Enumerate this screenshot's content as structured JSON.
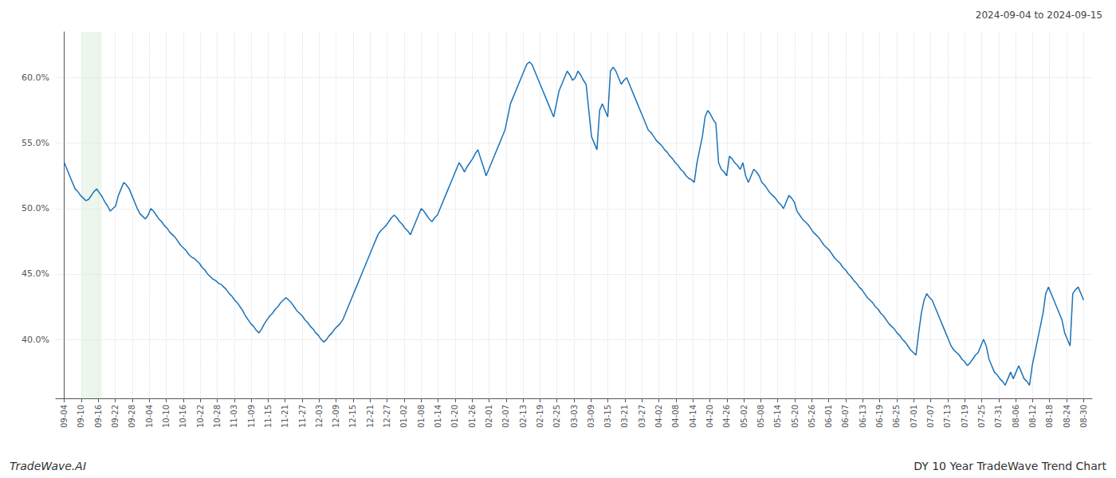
{
  "chart_data": {
    "type": "line",
    "title": "2024-09-04 to 2024-09-15",
    "annotations": [
      "TradeWave.AI",
      "DY 10 Year TradeWave Trend Chart"
    ],
    "color": "#1a72b8",
    "grid": true,
    "highlight": {
      "start": 1.0,
      "end": 2.2,
      "color": "#ddeedd"
    },
    "xlim": [
      -0.5,
      60.5
    ],
    "xticks": [
      {
        "value": 0,
        "label": "09-04"
      },
      {
        "value": 1,
        "label": "09-10"
      },
      {
        "value": 2,
        "label": "09-16"
      },
      {
        "value": 3,
        "label": "09-22"
      },
      {
        "value": 4,
        "label": "09-28"
      },
      {
        "value": 5,
        "label": "10-04"
      },
      {
        "value": 6,
        "label": "10-10"
      },
      {
        "value": 7,
        "label": "10-16"
      },
      {
        "value": 8,
        "label": "10-22"
      },
      {
        "value": 9,
        "label": "10-28"
      },
      {
        "value": 10,
        "label": "11-03"
      },
      {
        "value": 11,
        "label": "11-09"
      },
      {
        "value": 12,
        "label": "11-15"
      },
      {
        "value": 13,
        "label": "11-21"
      },
      {
        "value": 14,
        "label": "11-27"
      },
      {
        "value": 15,
        "label": "12-03"
      },
      {
        "value": 16,
        "label": "12-09"
      },
      {
        "value": 17,
        "label": "12-15"
      },
      {
        "value": 18,
        "label": "12-21"
      },
      {
        "value": 19,
        "label": "12-27"
      },
      {
        "value": 20,
        "label": "01-02"
      },
      {
        "value": 21,
        "label": "01-08"
      },
      {
        "value": 22,
        "label": "01-14"
      },
      {
        "value": 23,
        "label": "01-20"
      },
      {
        "value": 24,
        "label": "01-26"
      },
      {
        "value": 25,
        "label": "02-01"
      },
      {
        "value": 26,
        "label": "02-07"
      },
      {
        "value": 27,
        "label": "02-13"
      },
      {
        "value": 28,
        "label": "02-19"
      },
      {
        "value": 29,
        "label": "02-25"
      },
      {
        "value": 30,
        "label": "03-03"
      },
      {
        "value": 31,
        "label": "03-09"
      },
      {
        "value": 32,
        "label": "03-15"
      },
      {
        "value": 33,
        "label": "03-21"
      },
      {
        "value": 34,
        "label": "03-27"
      },
      {
        "value": 35,
        "label": "04-02"
      },
      {
        "value": 36,
        "label": "04-08"
      },
      {
        "value": 37,
        "label": "04-14"
      },
      {
        "value": 38,
        "label": "04-20"
      },
      {
        "value": 39,
        "label": "04-26"
      },
      {
        "value": 40,
        "label": "05-02"
      },
      {
        "value": 41,
        "label": "05-08"
      },
      {
        "value": 42,
        "label": "05-14"
      },
      {
        "value": 43,
        "label": "05-20"
      },
      {
        "value": 44,
        "label": "05-26"
      },
      {
        "value": 45,
        "label": "06-01"
      },
      {
        "value": 46,
        "label": "06-07"
      },
      {
        "value": 47,
        "label": "06-13"
      },
      {
        "value": 48,
        "label": "06-19"
      },
      {
        "value": 49,
        "label": "06-25"
      },
      {
        "value": 50,
        "label": "07-01"
      },
      {
        "value": 51,
        "label": "07-07"
      },
      {
        "value": 52,
        "label": "07-13"
      },
      {
        "value": 53,
        "label": "07-19"
      },
      {
        "value": 54,
        "label": "07-25"
      },
      {
        "value": 55,
        "label": "07-31"
      },
      {
        "value": 56,
        "label": "08-06"
      },
      {
        "value": 57,
        "label": "08-12"
      },
      {
        "value": 58,
        "label": "08-18"
      },
      {
        "value": 59,
        "label": "08-24"
      },
      {
        "value": 60,
        "label": "08-30"
      }
    ],
    "ylim": [
      35.5,
      63.5
    ],
    "yticks": [
      {
        "value": 40.0,
        "label": "40.0%"
      },
      {
        "value": 45.0,
        "label": "45.0%"
      },
      {
        "value": 50.0,
        "label": "50.0%"
      },
      {
        "value": 55.0,
        "label": "55.0%"
      },
      {
        "value": 60.0,
        "label": "60.0%"
      }
    ],
    "x": [
      0,
      0.1592,
      0.3183,
      0.4775,
      0.6366,
      0.7958,
      0.9549,
      1.1141,
      1.2732,
      1.4324,
      1.5915,
      1.7507,
      1.9098,
      2.069,
      2.2281,
      2.3873,
      2.5464,
      2.7056,
      2.8647,
      3.0239,
      3.183,
      3.3422,
      3.5013,
      3.6605,
      3.8196,
      3.9788,
      4.1379,
      4.2971,
      4.4562,
      4.6154,
      4.7745,
      4.9337,
      5.0928,
      5.252,
      5.4111,
      5.5703,
      5.7294,
      5.8886,
      6.0477,
      6.2069,
      6.366,
      6.5252,
      6.6844,
      6.8435,
      7.0027,
      7.1618,
      7.321,
      7.4801,
      7.6393,
      7.7984,
      7.9576,
      8.1167,
      8.2759,
      8.435,
      8.5942,
      8.7533,
      8.9125,
      9.0716,
      9.2308,
      9.3899,
      9.5491,
      9.7082,
      9.8674,
      10.0265,
      10.1857,
      10.3448,
      10.504,
      10.6631,
      10.8223,
      10.9814,
      11.1406,
      11.2997,
      11.4589,
      11.618,
      11.7772,
      11.9363,
      12.0955,
      12.2546,
      12.4138,
      12.5729,
      12.7321,
      12.8912,
      13.0504,
      13.2095,
      13.3687,
      13.5279,
      13.687,
      13.8462,
      14.0053,
      14.1645,
      14.3236,
      14.4828,
      14.6419,
      14.8011,
      14.9602,
      15.1194,
      15.2785,
      15.4377,
      15.5968,
      15.756,
      15.9151,
      16.0743,
      16.2334,
      16.3926,
      16.5517,
      16.7109,
      16.87,
      17.0292,
      17.1883,
      17.3475,
      17.5066,
      17.6658,
      17.8249,
      17.9841,
      18.1432,
      18.3024,
      18.4615,
      18.6207,
      18.7798,
      18.939,
      19.0981,
      19.2573,
      19.4164,
      19.5756,
      19.7347,
      19.8939,
      20.0531,
      20.2122,
      20.3714,
      20.5305,
      20.6897,
      20.8488,
      21.008,
      21.1671,
      21.3263,
      21.4854,
      21.6446,
      21.8037,
      21.9629,
      22.122,
      22.2812,
      22.4403,
      22.5995,
      22.7586,
      22.9178,
      23.0769,
      23.2361,
      23.3952,
      23.5544,
      23.7135,
      23.8727,
      24.0318,
      24.191,
      24.3501,
      24.5093,
      24.6684,
      24.8276,
      24.9867,
      25.1459,
      25.305,
      25.4642,
      25.6233,
      25.7825,
      25.9416,
      26.1008,
      26.2599,
      26.4191,
      26.5782,
      26.7374,
      26.8966,
      27.0557,
      27.2149,
      27.374,
      27.5332,
      27.6923,
      27.8515,
      28.0106,
      28.1698,
      28.3289,
      28.4881,
      28.6472,
      28.8064,
      28.9655,
      29.1247,
      29.2838,
      29.443,
      29.6021,
      29.7613,
      29.9204,
      30.0796,
      30.2387,
      30.3979,
      30.557,
      30.7162,
      30.8753,
      31.0345,
      31.1936,
      31.3528,
      31.5119,
      31.6711,
      31.8302,
      31.9894,
      32.1485,
      32.3077,
      32.4668,
      32.626,
      32.7851,
      32.9443,
      33.1034,
      33.2626,
      33.4218,
      33.5809,
      33.7401,
      33.8992,
      34.0584,
      34.2175,
      34.3767,
      34.5358,
      34.695,
      34.8541,
      35.0133,
      35.1724,
      35.3316,
      35.4907,
      35.6499,
      35.809,
      35.9682,
      36.1273,
      36.2865,
      36.4456,
      36.6048,
      36.7639,
      36.9231,
      37.0822,
      37.2414,
      37.4005,
      37.5597,
      37.7188,
      37.878,
      38.0371,
      38.1963,
      38.3554,
      38.5146,
      38.6737,
      38.8329,
      38.992,
      39.1512,
      39.3103,
      39.4695,
      39.6286,
      39.7878,
      39.9469,
      40.1061,
      40.2653,
      40.4244,
      40.5836,
      40.7427,
      40.9019,
      41.061,
      41.2202,
      41.3793,
      41.5385,
      41.6976,
      41.8568,
      42.0159,
      42.1751,
      42.3342,
      42.4934,
      42.6525,
      42.8117,
      42.9708,
      43.13,
      43.2891,
      43.4483,
      43.6074,
      43.7666,
      43.9257,
      44.0849,
      44.244,
      44.4032,
      44.5623,
      44.7215,
      44.8806,
      45.0398,
      45.1989,
      45.3581,
      45.5172,
      45.6764,
      45.8355,
      45.9947,
      46.1538,
      46.313,
      46.4721,
      46.6313,
      46.7905,
      46.9496,
      47.1088,
      47.2679,
      47.4271,
      47.5862,
      47.7454,
      47.9045,
      48.0637,
      48.2228,
      48.382,
      48.5411,
      48.7003,
      48.8594,
      49.0186,
      49.1777,
      49.3369,
      49.496,
      49.6552,
      49.8143,
      49.9735,
      50.1326,
      50.2918,
      50.4509,
      50.6101,
      50.7692,
      50.9284,
      51.0875,
      51.2467,
      51.4058,
      51.565,
      51.7241,
      51.8833,
      52.0424,
      52.2016,
      52.3607,
      52.5199,
      52.679,
      52.8382,
      52.9973,
      53.1565,
      53.3156,
      53.4748,
      53.634,
      53.7931,
      53.9523,
      54.1114,
      54.2706,
      54.4297,
      54.5889,
      54.748,
      54.9072,
      55.0663,
      55.2255,
      55.3846,
      55.5438,
      55.7029,
      55.8621,
      56.0212,
      56.1804,
      56.3395,
      56.4987,
      56.6578,
      56.817,
      56.9761,
      57.1353,
      57.2944,
      57.4536,
      57.6127,
      57.7719,
      57.931,
      58.0902,
      58.2493,
      58.4085,
      58.5676,
      58.7268,
      58.8859,
      59.0451,
      59.2042,
      59.3634,
      59.5225,
      59.6817,
      59.8408,
      60
    ],
    "values": [
      53.5,
      53.0,
      52.5,
      52.0,
      51.5,
      51.3,
      51.0,
      50.8,
      50.6,
      50.7,
      51.0,
      51.3,
      51.5,
      51.2,
      50.9,
      50.5,
      50.2,
      49.8,
      50.0,
      50.2,
      51.0,
      51.5,
      52.0,
      51.8,
      51.5,
      51.0,
      50.5,
      50.0,
      49.6,
      49.4,
      49.2,
      49.5,
      50.0,
      49.8,
      49.5,
      49.2,
      49.0,
      48.7,
      48.5,
      48.2,
      48.0,
      47.8,
      47.5,
      47.2,
      47.0,
      46.8,
      46.5,
      46.3,
      46.2,
      46.0,
      45.8,
      45.5,
      45.3,
      45.0,
      44.8,
      44.6,
      44.5,
      44.3,
      44.2,
      44.0,
      43.8,
      43.5,
      43.3,
      43.0,
      42.8,
      42.5,
      42.2,
      41.8,
      41.5,
      41.2,
      41.0,
      40.7,
      40.5,
      40.8,
      41.2,
      41.5,
      41.8,
      42.0,
      42.3,
      42.5,
      42.8,
      43.0,
      43.2,
      43.0,
      42.8,
      42.5,
      42.2,
      42.0,
      41.8,
      41.5,
      41.3,
      41.0,
      40.8,
      40.5,
      40.3,
      40.0,
      39.8,
      40.0,
      40.3,
      40.5,
      40.8,
      41.0,
      41.2,
      41.5,
      42.0,
      42.5,
      43.0,
      43.5,
      44.0,
      44.5,
      45.0,
      45.5,
      46.0,
      46.5,
      47.0,
      47.5,
      48.0,
      48.3,
      48.5,
      48.7,
      49.0,
      49.3,
      49.5,
      49.3,
      49.0,
      48.8,
      48.5,
      48.3,
      48.0,
      48.5,
      49.0,
      49.5,
      50.0,
      49.8,
      49.5,
      49.2,
      49.0,
      49.3,
      49.5,
      50.0,
      50.5,
      51.0,
      51.5,
      52.0,
      52.5,
      53.0,
      53.5,
      53.2,
      52.8,
      53.2,
      53.5,
      53.8,
      54.2,
      54.5,
      53.8,
      53.2,
      52.5,
      53.0,
      53.5,
      54.0,
      54.5,
      55.0,
      55.5,
      56.0,
      57.0,
      58.0,
      58.5,
      59.0,
      59.5,
      60.0,
      60.5,
      61.0,
      61.2,
      61.0,
      60.5,
      60.0,
      59.5,
      59.0,
      58.5,
      58.0,
      57.5,
      57.0,
      58.0,
      59.0,
      59.5,
      60.0,
      60.5,
      60.2,
      59.8,
      60.0,
      60.5,
      60.2,
      59.8,
      59.5,
      57.5,
      55.5,
      55.0,
      54.5,
      57.5,
      58.0,
      57.5,
      57.0,
      60.5,
      60.8,
      60.5,
      60.0,
      59.5,
      59.8,
      60.0,
      59.5,
      59.0,
      58.5,
      58.0,
      57.5,
      57.0,
      56.5,
      56.0,
      55.8,
      55.5,
      55.2,
      55.0,
      54.8,
      54.5,
      54.3,
      54.0,
      53.8,
      53.5,
      53.3,
      53.0,
      52.8,
      52.5,
      52.3,
      52.2,
      52.0,
      53.5,
      54.5,
      55.5,
      57.0,
      57.5,
      57.2,
      56.8,
      56.5,
      53.5,
      53.0,
      52.8,
      52.5,
      54.0,
      53.8,
      53.5,
      53.3,
      53.0,
      53.5,
      52.5,
      52.0,
      52.5,
      53.0,
      52.8,
      52.5,
      52.0,
      51.8,
      51.5,
      51.2,
      51.0,
      50.8,
      50.5,
      50.3,
      50.0,
      50.5,
      51.0,
      50.8,
      50.5,
      49.8,
      49.5,
      49.2,
      49.0,
      48.8,
      48.5,
      48.2,
      48.0,
      47.8,
      47.5,
      47.2,
      47.0,
      46.8,
      46.5,
      46.2,
      46.0,
      45.8,
      45.5,
      45.3,
      45.0,
      44.8,
      44.5,
      44.3,
      44.0,
      43.8,
      43.5,
      43.2,
      43.0,
      42.8,
      42.5,
      42.3,
      42.0,
      41.8,
      41.5,
      41.2,
      41.0,
      40.8,
      40.5,
      40.3,
      40.0,
      39.8,
      39.5,
      39.2,
      39.0,
      38.8,
      40.5,
      42.0,
      43.0,
      43.5,
      43.2,
      43.0,
      42.5,
      42.0,
      41.5,
      41.0,
      40.5,
      40.0,
      39.5,
      39.2,
      39.0,
      38.8,
      38.5,
      38.3,
      38.0,
      38.2,
      38.5,
      38.8,
      39.0,
      39.5,
      40.0,
      39.5,
      38.5,
      38.0,
      37.5,
      37.3,
      37.0,
      36.8,
      36.5,
      37.0,
      37.5,
      37.0,
      37.5,
      38.0,
      37.5,
      37.0,
      36.8,
      36.5,
      38.0,
      39.0,
      40.0,
      41.0,
      42.0,
      43.5,
      44.0,
      43.5,
      43.0,
      42.5,
      42.0,
      41.5,
      40.5,
      40.0,
      39.5,
      43.5,
      43.8,
      44.0,
      43.5,
      43.0
    ]
  }
}
